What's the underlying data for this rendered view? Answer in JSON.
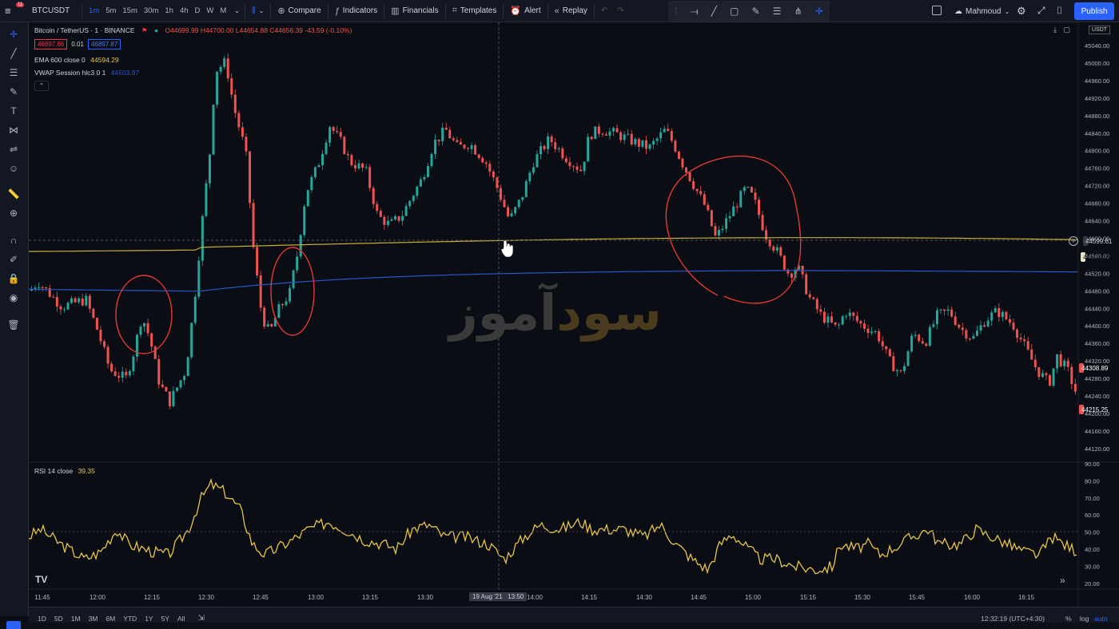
{
  "topbar": {
    "symbol": "BTCUSDT",
    "notif_badge": "11",
    "timeframes": [
      "1m",
      "5m",
      "15m",
      "30m",
      "1h",
      "4h",
      "D",
      "W",
      "M"
    ],
    "active_timeframe": "1m",
    "compare": "Compare",
    "indicators": "Indicators",
    "financials": "Financials",
    "templates": "Templates",
    "alert": "Alert",
    "replay": "Replay",
    "user": "Mahmoud",
    "publish": "Publish"
  },
  "legend": {
    "title": "Bitcoin / TetherUS · 1 · BINANCE",
    "ohlc": "O44699.99 H44700.00 L44654.88 C44656.39 -43.59 (-0.10%)",
    "sell_price": "46897.86",
    "spread": "0.01",
    "buy_price": "46897.87",
    "ema_label": "EMA 600 close 0",
    "ema_value": "44594.29",
    "vwap_label": "VWAP Session hlc3 0 1",
    "vwap_value": "44503.97",
    "rsi_label": "RSI 14 close",
    "rsi_value": "39.35"
  },
  "price_axis": {
    "currency": "USDT",
    "ticks": [
      "45040.00",
      "45000.00",
      "44960.00",
      "44920.00",
      "44880.00",
      "44840.00",
      "44800.00",
      "44760.00",
      "44720.00",
      "44680.00",
      "44640.00",
      "44600.00",
      "44560.00",
      "44520.00",
      "44480.00",
      "44440.00",
      "44400.00",
      "44360.00",
      "44320.00",
      "44280.00",
      "44240.00",
      "44200.00",
      "44160.00",
      "44120.00"
    ],
    "crosshair_price": "44599.61",
    "ema_tag": "44564.16",
    "last_price_tag": "44308.89",
    "vwap_tag": "44215.25"
  },
  "rsi_axis": {
    "ticks": [
      "90.00",
      "80.00",
      "70.00",
      "60.00",
      "50.00",
      "40.00",
      "30.00",
      "20.00"
    ]
  },
  "time_axis": {
    "ticks": [
      "11:45",
      "12:00",
      "12:15",
      "12:30",
      "12:45",
      "13:00",
      "13:15",
      "13:30",
      "14:00",
      "14:15",
      "14:30",
      "14:45",
      "15:00",
      "15:15",
      "15:30",
      "15:45",
      "16:00",
      "16:15"
    ],
    "crosshair_time": "19 Aug '21   13:50"
  },
  "bottombar": {
    "ranges": [
      "1D",
      "5D",
      "1M",
      "3M",
      "6M",
      "YTD",
      "1Y",
      "5Y",
      "All"
    ],
    "clock": "12:32:19 (UTC+4:30)",
    "percent": "%",
    "log": "log",
    "auto": "auto"
  },
  "watermark": {
    "part1": "سود",
    "part2": "آموز",
    "color1": "#4a3a1e",
    "color2": "#3a3a3a"
  },
  "colors": {
    "up": "#26a69a",
    "down": "#ef5350",
    "ema": "#c8b040",
    "vwap": "#2a56c6",
    "rsi": "#e8c44a",
    "annotation": "#e53935",
    "accent": "#2962ff"
  },
  "chart_data": {
    "type": "candlestick",
    "y_range": [
      44100,
      45060
    ],
    "rsi_range": [
      15,
      95
    ]
  }
}
